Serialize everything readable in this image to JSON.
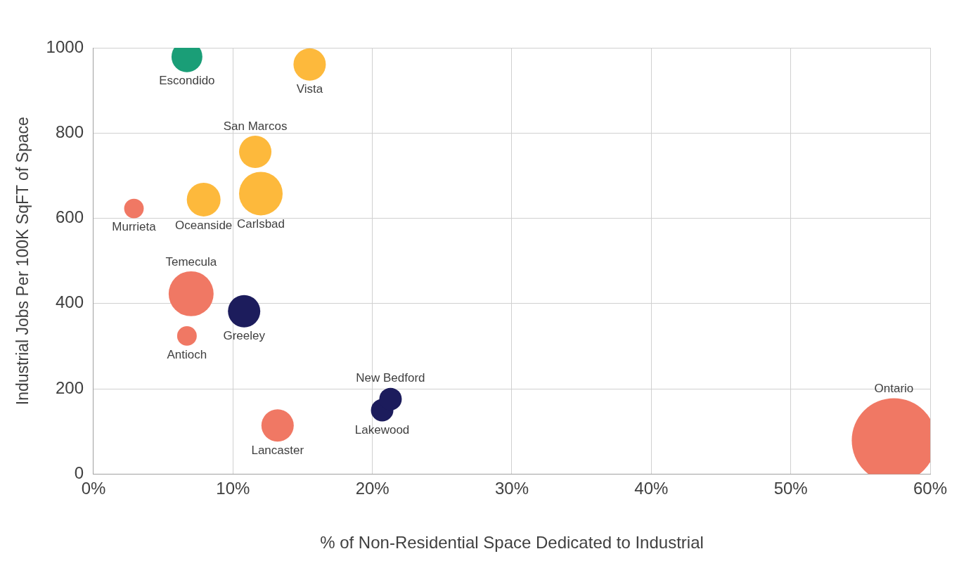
{
  "chart_data": {
    "type": "bubble",
    "xlabel": "% of Non-Residential Space Dedicated to Industrial",
    "ylabel": "Industrial Jobs Per 100K SqFT of Space",
    "xlim": [
      0,
      60
    ],
    "xticks": [
      {
        "value": 0,
        "label": "0%"
      },
      {
        "value": 10,
        "label": "10%"
      },
      {
        "value": 20,
        "label": "20%"
      },
      {
        "value": 30,
        "label": "30%"
      },
      {
        "value": 40,
        "label": "40%"
      },
      {
        "value": 50,
        "label": "50%"
      },
      {
        "value": 60,
        "label": "60%"
      }
    ],
    "ylim": [
      0,
      1000
    ],
    "yticks": [
      0,
      200,
      400,
      600,
      800,
      1000
    ],
    "grid": true,
    "legend": false,
    "series": [
      {
        "name": "Escondido",
        "color": "#1a9e77",
        "x": [
          6.7
        ],
        "values": [
          979
        ],
        "sizes": [
          0.134
        ]
      },
      {
        "name": "Vista",
        "color": "#fdb93c",
        "x": [
          15.5
        ],
        "values": [
          961
        ],
        "sizes": [
          0.147
        ]
      },
      {
        "name": "San Marcos",
        "color": "#fdb93c",
        "x": [
          11.6
        ],
        "values": [
          756
        ],
        "sizes": [
          0.147
        ]
      },
      {
        "name": "Carlsbad",
        "color": "#fdb93c",
        "x": [
          12.0
        ],
        "values": [
          658
        ],
        "sizes": [
          0.267
        ]
      },
      {
        "name": "Oceanside",
        "color": "#fdb93c",
        "x": [
          7.9
        ],
        "values": [
          644
        ],
        "sizes": [
          0.16
        ]
      },
      {
        "name": "Murrieta",
        "color": "#f07864",
        "x": [
          2.9
        ],
        "values": [
          623
        ],
        "sizes": [
          0.054
        ]
      },
      {
        "name": "Temecula",
        "color": "#f07864",
        "x": [
          7.0
        ],
        "values": [
          423
        ],
        "sizes": [
          0.284
        ]
      },
      {
        "name": "Greeley",
        "color": "#1c1c5c",
        "x": [
          10.8
        ],
        "values": [
          382
        ],
        "sizes": [
          0.147
        ]
      },
      {
        "name": "Antioch",
        "color": "#f07864",
        "x": [
          6.7
        ],
        "values": [
          324
        ],
        "sizes": [
          0.054
        ]
      },
      {
        "name": "New Bedford",
        "color": "#1c1c5c",
        "x": [
          21.3
        ],
        "values": [
          176
        ],
        "sizes": [
          0.071
        ]
      },
      {
        "name": "Lakewood",
        "color": "#1c1c5c",
        "x": [
          20.7
        ],
        "values": [
          150
        ],
        "sizes": [
          0.071
        ]
      },
      {
        "name": "Lancaster",
        "color": "#f07864",
        "x": [
          13.2
        ],
        "values": [
          114
        ],
        "sizes": [
          0.147
        ]
      },
      {
        "name": "Ontario",
        "color": "#f07864",
        "x": [
          57.4
        ],
        "values": [
          79
        ],
        "sizes": [
          1
        ]
      }
    ]
  }
}
